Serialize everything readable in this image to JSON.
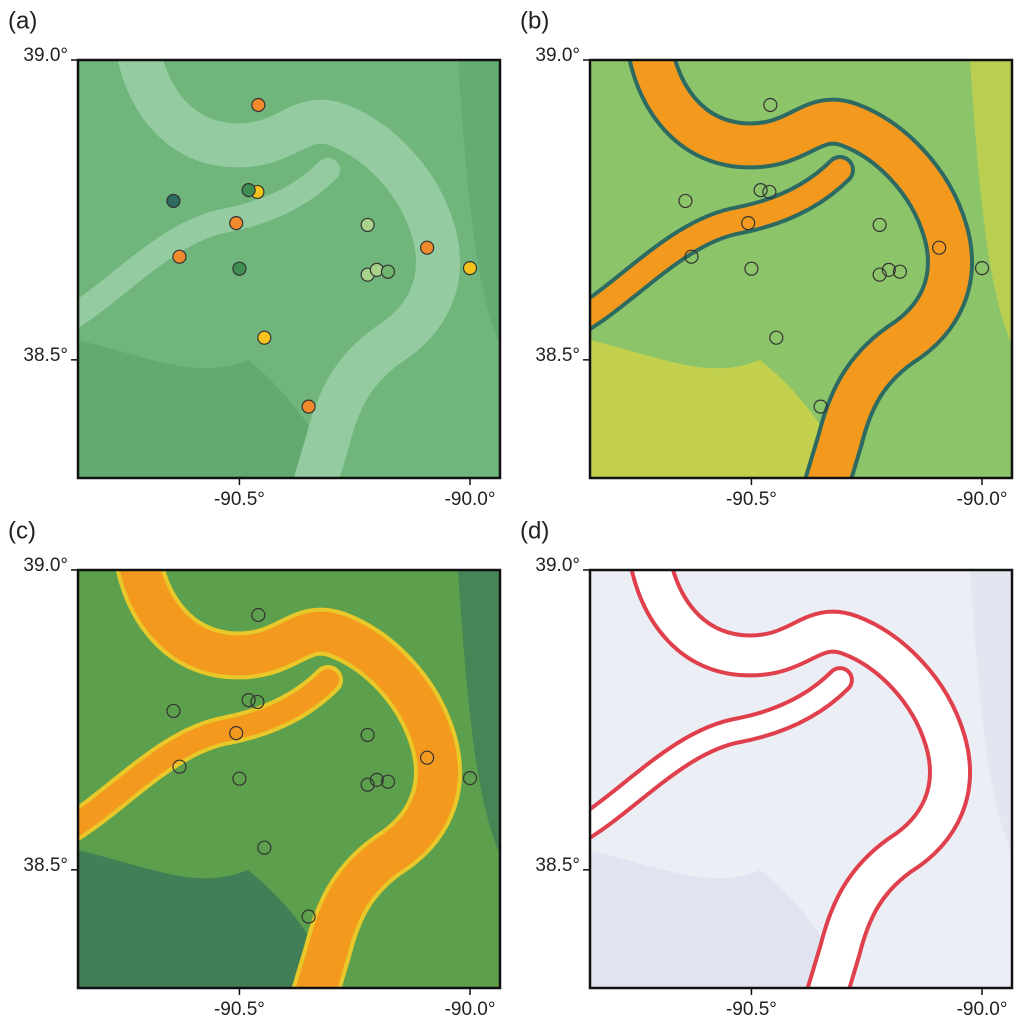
{
  "map": {
    "panels": [
      {
        "label": "(a)",
        "style": "relief"
      },
      {
        "label": "(b)",
        "style": "classes"
      },
      {
        "label": "(c)",
        "style": "fine"
      },
      {
        "label": "(d)",
        "style": "difference"
      }
    ],
    "xlim": [
      -90.85,
      -89.935
    ],
    "ylim": [
      38.303,
      39.0
    ],
    "xticks": [
      {
        "value": -90.5,
        "label": "-90.5°"
      },
      {
        "value": -90.0,
        "label": "-90.0°"
      }
    ],
    "yticks": [
      {
        "value": 39.0,
        "label": "39.0°"
      },
      {
        "value": 38.5,
        "label": "38.5°"
      }
    ],
    "stations": [
      {
        "lon": -90.459,
        "lat": 38.925,
        "color": "#f08a2c"
      },
      {
        "lon": -90.507,
        "lat": 38.728,
        "color": "#f08a2c"
      },
      {
        "lon": -90.63,
        "lat": 38.672,
        "color": "#f08a2c"
      },
      {
        "lon": -90.093,
        "lat": 38.687,
        "color": "#f08a2c"
      },
      {
        "lon": -90.35,
        "lat": 38.422,
        "color": "#f08a2c"
      },
      {
        "lon": -90.461,
        "lat": 38.78,
        "color": "#f6c21c"
      },
      {
        "lon": -90.446,
        "lat": 38.537,
        "color": "#f6c21c"
      },
      {
        "lon": -90.0,
        "lat": 38.653,
        "color": "#f6c21c"
      },
      {
        "lon": -90.643,
        "lat": 38.765,
        "color": "#2d6a62"
      },
      {
        "lon": -90.48,
        "lat": 38.783,
        "color": "#3f8f55"
      },
      {
        "lon": -90.5,
        "lat": 38.652,
        "color": "#3f8f55"
      },
      {
        "lon": -90.222,
        "lat": 38.725,
        "color": "#a9d28a"
      },
      {
        "lon": -90.222,
        "lat": 38.642,
        "color": "#a9d28a"
      },
      {
        "lon": -90.202,
        "lat": 38.65,
        "color": "#a9d28a"
      },
      {
        "lon": -90.178,
        "lat": 38.647,
        "color": "#6fb56b"
      }
    ]
  }
}
